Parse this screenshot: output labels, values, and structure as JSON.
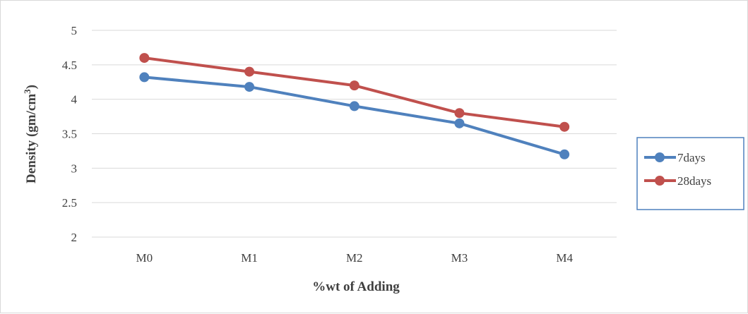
{
  "chart_data": {
    "type": "line",
    "categories": [
      "M0",
      "M1",
      "M2",
      "M3",
      "M4"
    ],
    "series": [
      {
        "name": "7days",
        "values": [
          4.32,
          4.18,
          3.9,
          3.65,
          3.2
        ],
        "color": "#4f81bd"
      },
      {
        "name": "28days",
        "values": [
          4.6,
          4.4,
          4.2,
          3.8,
          3.6
        ],
        "color": "#c0504d"
      }
    ],
    "xlabel": "%wt of Adding",
    "ylabel_main": "Density (gm/cm",
    "ylabel_sup": "3",
    "ylabel_close": ")",
    "ylim": [
      2,
      5
    ],
    "yticks": [
      "2",
      "2.5",
      "3",
      "3.5",
      "4",
      "4.5",
      "5"
    ],
    "grid": true,
    "legend_position": "right",
    "gridline_color": "#d9d9d9",
    "legend_border_color": "#4f81bd"
  }
}
